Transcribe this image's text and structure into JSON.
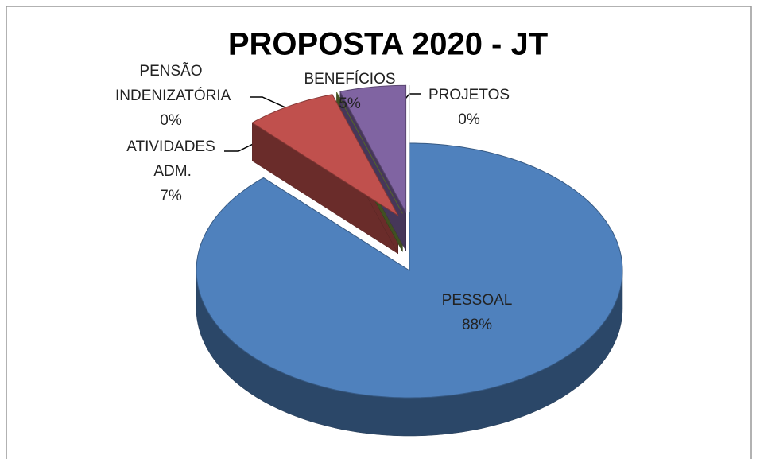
{
  "chart_data": {
    "type": "pie",
    "title": "PROPOSTA 2020 - JT",
    "categories": [
      "PESSOAL",
      "ATIVIDADES ADM.",
      "PENSÃO INDENIZATÓRIA",
      "BENEFÍCIOS",
      "PROJETOS"
    ],
    "values": [
      88,
      7,
      0,
      5,
      0
    ],
    "value_labels": [
      "88%",
      "7%",
      "0%",
      "5%",
      "0%"
    ],
    "colors": [
      "#4f81bd",
      "#c0504d",
      "#76923c",
      "#8064a2",
      "#ffffff"
    ]
  }
}
